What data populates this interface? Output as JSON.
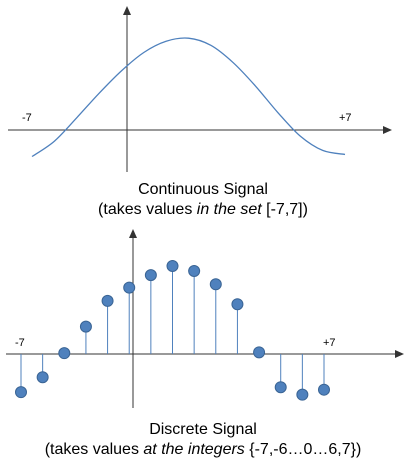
{
  "continuous": {
    "left_label": "-7",
    "right_label": "+7",
    "title": "Continuous Signal",
    "subtitle_pre": "(takes values ",
    "subtitle_em": "in the set",
    "subtitle_post": " [-7,7])"
  },
  "discrete": {
    "left_label": "-7",
    "right_label": "+7",
    "title": "Discrete Signal",
    "subtitle_pre": "(takes values ",
    "subtitle_em": "at the integers",
    "subtitle_post": " {-7,-6…0…6,7})"
  },
  "colors": {
    "curve": "#4f81bd",
    "stem": "#4f81bd",
    "dot_fill": "#4f81bd",
    "dot_stroke": "#3a6494",
    "axis": "#333333"
  },
  "chart_data": [
    {
      "type": "line",
      "x": [
        -7,
        -6,
        -5,
        -4,
        -3,
        -2,
        -1,
        0,
        1,
        2,
        3,
        4,
        5,
        6,
        7
      ],
      "values": [
        -2.6,
        -1.1,
        1.2,
        3.6,
        5.8,
        7.6,
        8.7,
        9.0,
        8.3,
        6.6,
        4.3,
        1.7,
        -0.6,
        -2.0,
        -2.4
      ],
      "xlim": [
        -7,
        7
      ]
    },
    {
      "type": "scatter",
      "x": [
        -7,
        -6,
        -5,
        -4,
        -3,
        -2,
        -1,
        0,
        1,
        2,
        3,
        4,
        5,
        6,
        7
      ],
      "values": [
        -4.6,
        -2.8,
        0.1,
        3.3,
        6.4,
        8.0,
        9.5,
        10.6,
        10.0,
        8.4,
        6.0,
        0.2,
        -4.0,
        -4.9,
        -4.3
      ],
      "xlim": [
        -7,
        7
      ]
    }
  ]
}
